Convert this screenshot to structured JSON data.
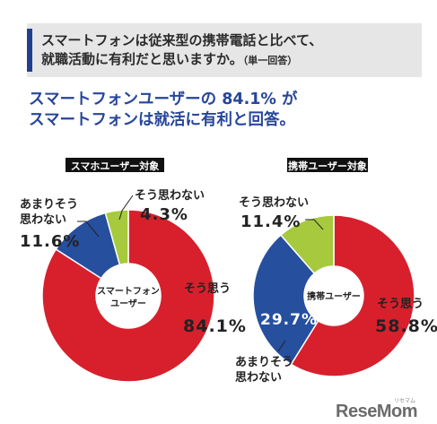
{
  "question": {
    "main_line1": "スマートフォンは従来型の携帯電話と比べて、",
    "main_line2": "就職活動に有利だと思いますか。",
    "note": "（単一回答）"
  },
  "headline": {
    "line1": "スマートフォンユーザーの 84.1% が",
    "line2": "スマートフォンは就活に有利と回答。"
  },
  "colors": {
    "yes": "#d7202c",
    "somewhat_no": "#264f9e",
    "no": "#a6c93e",
    "label_bg": "#111111",
    "headline": "#27469a"
  },
  "chart_data": [
    {
      "type": "pie",
      "title": "スマホユーザー対象",
      "center_label": [
        "スマートフォン",
        "ユーザー"
      ],
      "slices": [
        {
          "label": "そう思う",
          "value": 84.1,
          "value_label": "84.1%",
          "color": "#d7202c"
        },
        {
          "label": "あまりそう思わない",
          "value": 11.6,
          "value_label": "11.6%",
          "color": "#264f9e"
        },
        {
          "label": "そう思わない",
          "value": 4.3,
          "value_label": "4.3%",
          "color": "#a6c93e"
        }
      ]
    },
    {
      "type": "pie",
      "title": "携帯ユーザー対象",
      "center_label": [
        "携帯ユーザー"
      ],
      "slices": [
        {
          "label": "そう思う",
          "value": 58.8,
          "value_label": "58.8%",
          "color": "#d7202c"
        },
        {
          "label": "あまりそう思わない",
          "value": 29.7,
          "value_label": "29.7%",
          "color": "#264f9e"
        },
        {
          "label": "そう思わない",
          "value": 11.4,
          "value_label": "11.4%",
          "color": "#a6c93e"
        }
      ]
    }
  ],
  "logo": {
    "text_main": "ReseMom",
    "text_small": "リセマム"
  }
}
